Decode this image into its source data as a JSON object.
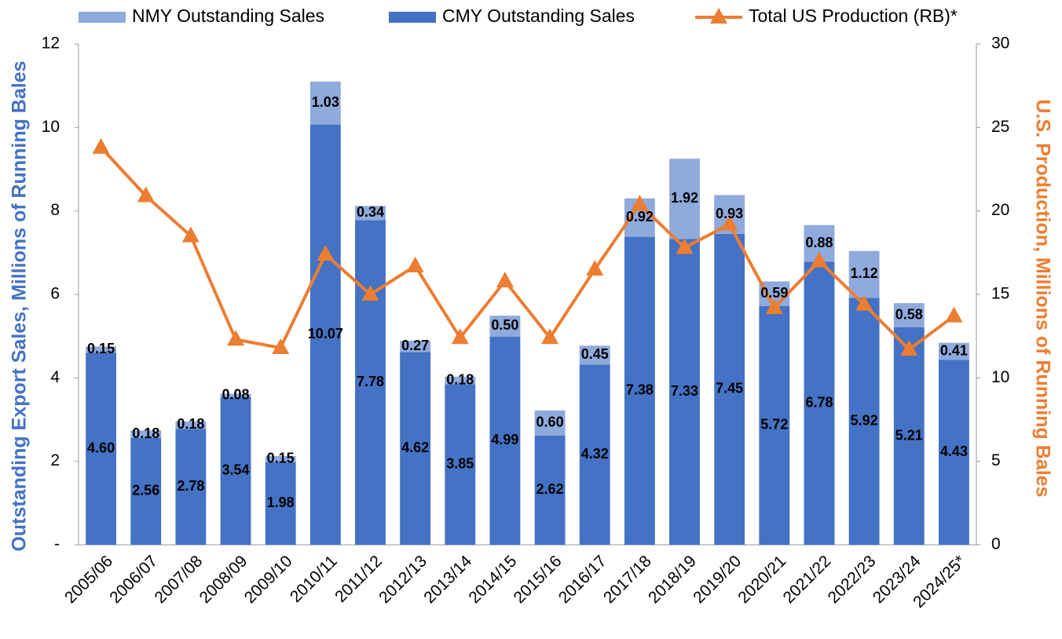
{
  "chart_data": {
    "type": "bar",
    "categories": [
      "2005/06",
      "2006/07",
      "2007/08",
      "2008/09",
      "2009/10",
      "2010/11",
      "2011/12",
      "2012/13",
      "2013/14",
      "2014/15",
      "2015/16",
      "2016/17",
      "2017/18",
      "2018/19",
      "2019/20",
      "2020/21",
      "2021/22",
      "2022/23",
      "2023/24",
      "2024/25*"
    ],
    "series": [
      {
        "name": "NMY Outstanding Sales",
        "type": "bar",
        "color": "#8faadc",
        "values": [
          0.15,
          0.18,
          0.18,
          0.08,
          0.15,
          1.03,
          0.34,
          0.27,
          0.18,
          0.5,
          0.6,
          0.45,
          0.92,
          1.92,
          0.93,
          0.59,
          0.88,
          1.12,
          0.58,
          0.41
        ],
        "value_labels": [
          "0.15",
          "0.18",
          "0.18",
          "0.08",
          "0.15",
          "1.03",
          "0.34",
          "0.27",
          "0.18",
          "0.50",
          "0.60",
          "0.45",
          "0.92",
          "1.92",
          "0.93",
          "0.59",
          "0.88",
          "1.12",
          "0.58",
          "0.41"
        ]
      },
      {
        "name": "CMY Outstanding Sales",
        "type": "bar",
        "color": "#4472c4",
        "values": [
          4.6,
          2.56,
          2.78,
          3.54,
          1.98,
          10.07,
          7.78,
          4.62,
          3.85,
          4.99,
          2.62,
          4.32,
          7.38,
          7.33,
          7.45,
          5.72,
          6.78,
          5.92,
          5.21,
          4.43
        ],
        "value_labels": [
          "4.60",
          "2.56",
          "2.78",
          "3.54",
          "1.98",
          "10.07",
          "7.78",
          "4.62",
          "3.85",
          "4.99",
          "2.62",
          "4.32",
          "7.38",
          "7.33",
          "7.45",
          "5.72",
          "6.78",
          "5.92",
          "5.21",
          "4.43"
        ]
      },
      {
        "name": "Total US Production (RB)*",
        "type": "line",
        "axis": "y2",
        "color": "#ed7d31",
        "values": [
          23.8,
          20.9,
          18.5,
          12.3,
          11.8,
          17.4,
          15.0,
          16.7,
          12.4,
          15.8,
          12.4,
          16.5,
          20.4,
          17.8,
          19.2,
          14.2,
          17.0,
          14.4,
          11.7,
          13.7
        ]
      }
    ],
    "y_label": "Outstanding Export Sales, Millions of Running Bales",
    "y2_label": "U.S. Production, Millions of Running Bales",
    "ylim": [
      0,
      12
    ],
    "yticks": [
      {
        "value": 0,
        "label": "-"
      },
      2,
      4,
      6,
      8,
      10,
      12
    ],
    "y2lim": [
      0,
      30
    ],
    "y2ticks": [
      0,
      5,
      10,
      15,
      20,
      25,
      30
    ],
    "grid": false,
    "legend": "top"
  }
}
